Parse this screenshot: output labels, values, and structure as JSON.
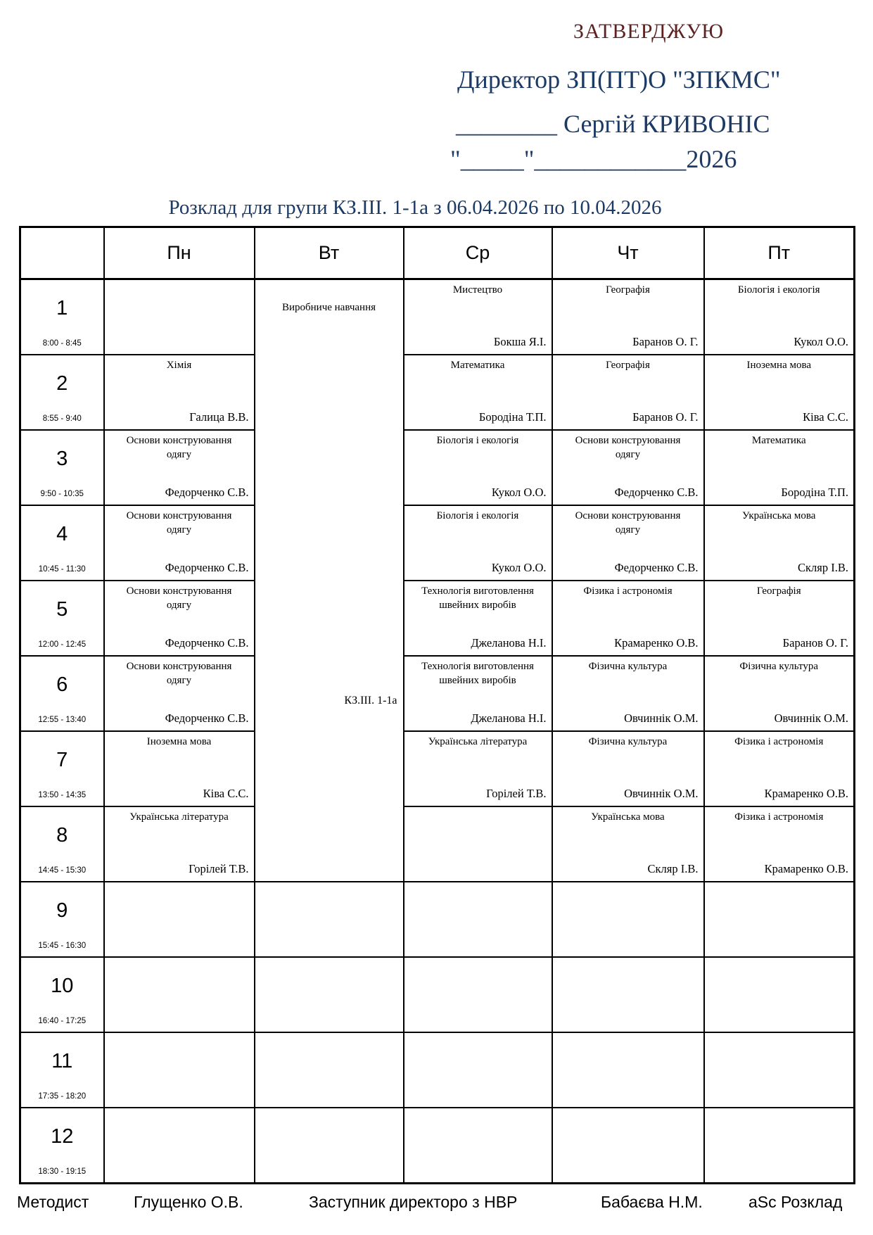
{
  "approval": {
    "stamp": "ЗАТВЕРДЖУЮ",
    "director_title": "Директор ЗП(ПТ)О \"ЗПКМС\"",
    "signature_line": "________ Сергій КРИВОНІС",
    "date_line": "\"_____\"____________2026"
  },
  "title": "Розклад для групи КЗ.ІІІ. 1-1а з 06.04.2026 по 10.04.2026",
  "table": {
    "day_headers": [
      "Пн",
      "Вт",
      "Ср",
      "Чт",
      "Пт"
    ],
    "periods": [
      {
        "num": "1",
        "time": "8:00 - 8:45"
      },
      {
        "num": "2",
        "time": "8:55 - 9:40"
      },
      {
        "num": "3",
        "time": "9:50 - 10:35"
      },
      {
        "num": "4",
        "time": "10:45 - 11:30"
      },
      {
        "num": "5",
        "time": "12:00 - 12:45"
      },
      {
        "num": "6",
        "time": "12:55 - 13:40"
      },
      {
        "num": "7",
        "time": "13:50 - 14:35"
      },
      {
        "num": "8",
        "time": "14:45 - 15:30"
      },
      {
        "num": "9",
        "time": "15:45 - 16:30"
      },
      {
        "num": "10",
        "time": "16:40 - 17:25"
      },
      {
        "num": "11",
        "time": "17:35 - 18:20"
      },
      {
        "num": "12",
        "time": "18:30 - 19:15"
      }
    ],
    "tuesday_merged": {
      "subject": "Виробниче навчання",
      "group": "КЗ.ІІІ. 1-1а",
      "row_span": 8
    },
    "lessons": [
      [
        null,
        null,
        {
          "subject": "Мистецтво",
          "teacher": "Бокша Я.І."
        },
        {
          "subject": "Географія",
          "teacher": "Баранов О. Г."
        },
        {
          "subject": "Біологія і екологія",
          "teacher": "Кукол О.О."
        }
      ],
      [
        {
          "subject": "Хімія",
          "teacher": "Галица В.В."
        },
        null,
        {
          "subject": "Математика",
          "teacher": "Бородіна Т.П."
        },
        {
          "subject": "Географія",
          "teacher": "Баранов О. Г."
        },
        {
          "subject": "Іноземна мова",
          "teacher": "Ківа С.С."
        }
      ],
      [
        {
          "subject": "Основи конструювання одягу",
          "teacher": "Федорченко С.В."
        },
        null,
        {
          "subject": "Біологія і екологія",
          "teacher": "Кукол О.О."
        },
        {
          "subject": "Основи конструювання одягу",
          "teacher": "Федорченко С.В."
        },
        {
          "subject": "Математика",
          "teacher": "Бородіна Т.П."
        }
      ],
      [
        {
          "subject": "Основи конструювання одягу",
          "teacher": "Федорченко С.В."
        },
        null,
        {
          "subject": "Біологія і екологія",
          "teacher": "Кукол О.О."
        },
        {
          "subject": "Основи конструювання одягу",
          "teacher": "Федорченко С.В."
        },
        {
          "subject": "Українська мова",
          "teacher": "Скляр І.В."
        }
      ],
      [
        {
          "subject": "Основи конструювання одягу",
          "teacher": "Федорченко С.В."
        },
        null,
        {
          "subject": "Технологія виготовлення швейних виробів",
          "teacher": "Джеланова Н.І."
        },
        {
          "subject": "Фізика і астрономія",
          "teacher": "Крамаренко О.В."
        },
        {
          "subject": "Географія",
          "teacher": "Баранов О. Г."
        }
      ],
      [
        {
          "subject": "Основи конструювання одягу",
          "teacher": "Федорченко С.В."
        },
        null,
        {
          "subject": "Технологія виготовлення швейних виробів",
          "teacher": "Джеланова Н.І."
        },
        {
          "subject": "Фізична культура",
          "teacher": "Овчиннік О.М."
        },
        {
          "subject": "Фізична культура",
          "teacher": "Овчиннік О.М."
        }
      ],
      [
        {
          "subject": "Іноземна мова",
          "teacher": "Ківа С.С."
        },
        null,
        {
          "subject": "Українська література",
          "teacher": "Горілей Т.В."
        },
        {
          "subject": "Фізична культура",
          "teacher": "Овчиннік О.М."
        },
        {
          "subject": "Фізика і астрономія",
          "teacher": "Крамаренко О.В."
        }
      ],
      [
        {
          "subject": "Українська література",
          "teacher": "Горілей Т.В."
        },
        null,
        null,
        {
          "subject": "Українська мова",
          "teacher": "Скляр І.В."
        },
        {
          "subject": "Фізика і астрономія",
          "teacher": "Крамаренко О.В."
        }
      ],
      [
        null,
        null,
        null,
        null,
        null
      ],
      [
        null,
        null,
        null,
        null,
        null
      ],
      [
        null,
        null,
        null,
        null,
        null
      ],
      [
        null,
        null,
        null,
        null,
        null
      ]
    ]
  },
  "footer": {
    "methodist_label": "Методист",
    "methodist_name": "Глущенко О.В.",
    "deputy_label": "Заступник директоро з НВР",
    "deputy_name": "Бабаєва Н.М.",
    "generator": "aSc Розклад"
  },
  "colors": {
    "navy": "#1c3a66",
    "maroon": "#5f2222"
  }
}
